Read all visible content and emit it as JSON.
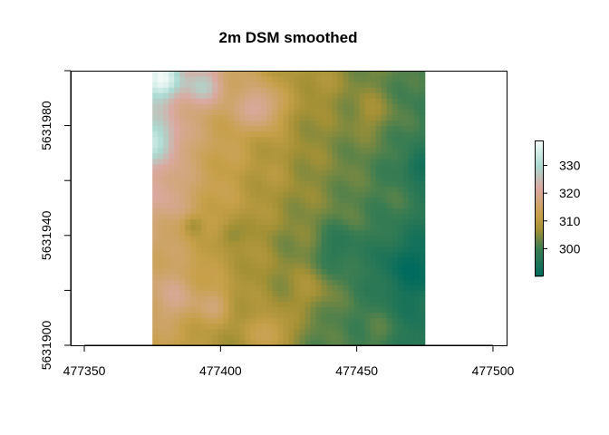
{
  "chart_data": {
    "type": "heatmap",
    "title": "2m  DSM smoothed",
    "xlabel": "",
    "ylabel": "",
    "xlim": [
      477345,
      477505
    ],
    "ylim": [
      5631900,
      5632000
    ],
    "xticks": [
      477350,
      477400,
      477450,
      477500
    ],
    "yticks": [
      5631900,
      5631920,
      5631940,
      5631960,
      5631980,
      5632000
    ],
    "xtick_labels": [
      "477350",
      "477400",
      "477450",
      "477500"
    ],
    "ytick_labels": [
      "5631900",
      "",
      "5631940",
      "",
      "5631980",
      ""
    ],
    "raster_extent": {
      "xmin": 477375,
      "xmax": 477475,
      "ymin": 5631900,
      "ymax": 5632000
    },
    "cell_size_m": 2,
    "value_range": [
      290,
      339
    ],
    "colorbar": {
      "ticks": [
        300,
        310,
        320,
        330
      ],
      "tick_labels": [
        "300",
        "310",
        "320",
        "330"
      ],
      "stops": [
        {
          "value": 290,
          "color": "#006b5e"
        },
        {
          "value": 300,
          "color": "#3b7d52"
        },
        {
          "value": 307,
          "color": "#a39035"
        },
        {
          "value": 312,
          "color": "#c7a049"
        },
        {
          "value": 318,
          "color": "#d2a77f"
        },
        {
          "value": 322,
          "color": "#dba8a0"
        },
        {
          "value": 330,
          "color": "#a9d9d1"
        },
        {
          "value": 339,
          "color": "#f4fbf9"
        }
      ]
    },
    "surface_features": [
      {
        "x": 477378,
        "y": 5631997,
        "z": 338,
        "r": 8
      },
      {
        "x": 477375,
        "y": 5631975,
        "z": 333,
        "r": 9
      },
      {
        "x": 477394,
        "y": 5631995,
        "z": 327,
        "r": 7
      },
      {
        "x": 477414,
        "y": 5631987,
        "z": 322,
        "r": 8
      },
      {
        "x": 477378,
        "y": 5631955,
        "z": 321,
        "r": 9
      },
      {
        "x": 477383,
        "y": 5631918,
        "z": 319,
        "r": 9
      },
      {
        "x": 477473,
        "y": 5631965,
        "z": 293,
        "r": 6
      },
      {
        "x": 477470,
        "y": 5631928,
        "z": 291,
        "r": 12
      },
      {
        "x": 477444,
        "y": 5631935,
        "z": 297,
        "r": 9
      },
      {
        "x": 477425,
        "y": 5631938,
        "z": 305,
        "r": 8
      },
      {
        "x": 477404,
        "y": 5631940,
        "z": 305,
        "r": 5
      },
      {
        "x": 477460,
        "y": 5631955,
        "z": 301,
        "r": 8
      },
      {
        "x": 477456,
        "y": 5631905,
        "z": 302,
        "r": 8
      },
      {
        "x": 477432,
        "y": 5631920,
        "z": 308,
        "r": 8
      },
      {
        "x": 477390,
        "y": 5631944,
        "z": 307,
        "r": 4
      },
      {
        "x": 477420,
        "y": 5631965,
        "z": 309,
        "r": 6
      },
      {
        "x": 477455,
        "y": 5631985,
        "z": 307,
        "r": 8
      },
      {
        "x": 477436,
        "y": 5631995,
        "z": 309,
        "r": 6
      },
      {
        "x": 477418,
        "y": 5631905,
        "z": 314,
        "r": 8
      },
      {
        "x": 477398,
        "y": 5631915,
        "z": 316,
        "r": 6
      }
    ]
  }
}
